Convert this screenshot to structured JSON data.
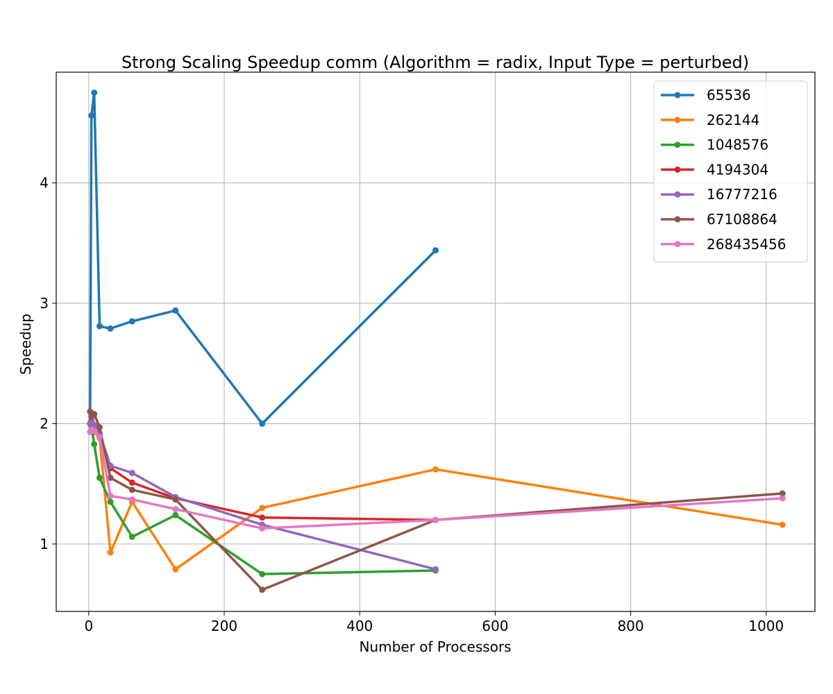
{
  "chart_data": {
    "type": "line",
    "title": "Strong Scaling Speedup comm (Algorithm = radix, Input Type = perturbed)",
    "xlabel": "Number of Processors",
    "ylabel": "Speedup",
    "xlim": [
      -48,
      1072
    ],
    "ylim": [
      0.44,
      4.92
    ],
    "xticks": [
      0,
      200,
      400,
      600,
      800,
      1000
    ],
    "yticks": [
      1,
      2,
      3,
      4
    ],
    "grid": true,
    "legend_position": "top-right",
    "series": [
      {
        "name": "65536",
        "color": "#1f77b4",
        "x": [
          2,
          4,
          8,
          16,
          32,
          64,
          128,
          256,
          512
        ],
        "y": [
          2.0,
          4.56,
          4.75,
          2.81,
          2.79,
          2.85,
          2.94,
          2.0,
          3.44
        ]
      },
      {
        "name": "262144",
        "color": "#ff7f0e",
        "x": [
          2,
          4,
          8,
          16,
          32,
          64,
          128,
          256,
          512,
          1024
        ],
        "y": [
          2.0,
          1.98,
          1.93,
          1.88,
          0.93,
          1.35,
          0.79,
          1.3,
          1.62,
          1.16
        ]
      },
      {
        "name": "1048576",
        "color": "#2ca02c",
        "x": [
          2,
          4,
          8,
          16,
          32,
          64,
          128,
          256,
          512
        ],
        "y": [
          2.0,
          1.98,
          1.83,
          1.55,
          1.35,
          1.06,
          1.24,
          0.75,
          0.78
        ]
      },
      {
        "name": "4194304",
        "color": "#d62728",
        "x": [
          2,
          4,
          8,
          16,
          32,
          64,
          128,
          256,
          512
        ],
        "y": [
          2.0,
          2.02,
          1.97,
          1.9,
          1.63,
          1.51,
          1.38,
          1.22,
          1.2
        ]
      },
      {
        "name": "16777216",
        "color": "#9467bd",
        "x": [
          2,
          4,
          8,
          16,
          32,
          64,
          128,
          256,
          512
        ],
        "y": [
          2.0,
          2.03,
          1.99,
          1.92,
          1.65,
          1.59,
          1.39,
          1.16,
          0.79
        ]
      },
      {
        "name": "67108864",
        "color": "#8c564b",
        "x": [
          2,
          4,
          8,
          16,
          32,
          64,
          128,
          256,
          512,
          1024
        ],
        "y": [
          2.1,
          2.06,
          2.08,
          1.97,
          1.55,
          1.45,
          1.37,
          0.62,
          1.2,
          1.42
        ]
      },
      {
        "name": "268435456",
        "color": "#e377c2",
        "x": [
          2,
          4,
          8,
          16,
          32,
          64,
          128,
          256,
          512,
          1024
        ],
        "y": [
          1.93,
          1.95,
          1.94,
          1.89,
          1.4,
          1.37,
          1.29,
          1.13,
          1.2,
          1.38
        ]
      }
    ]
  }
}
